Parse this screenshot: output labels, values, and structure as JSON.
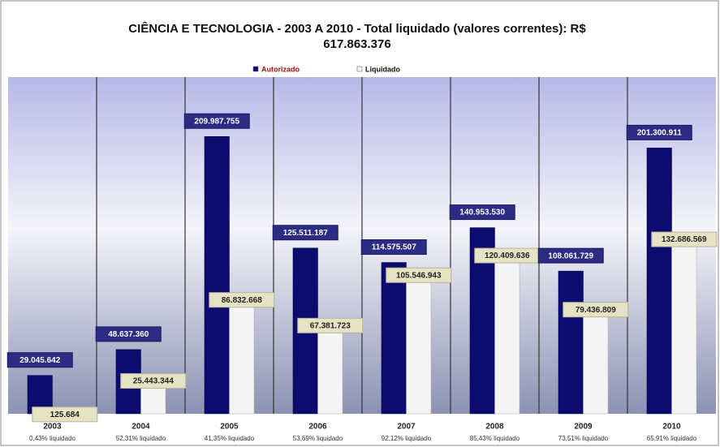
{
  "chart_data": {
    "type": "bar",
    "title": "CIÊNCIA E TECNOLOGIA - 2003 A 2010 - Total liquidado (valores correntes): R$ 617.863.376",
    "categories": [
      "2003",
      "2004",
      "2005",
      "2006",
      "2007",
      "2008",
      "2009",
      "2010"
    ],
    "annotations": [
      "0,43% liquidado",
      "52,31% liquidado",
      "41,35% liquidado",
      "53,69% liquidado",
      "92,12% liquidado",
      "85,43% liquidado",
      "73,51% liquidado",
      "65,91% liquidado"
    ],
    "series": [
      {
        "name": "Autorizado",
        "color": "#0b0b70",
        "values": [
          29045642,
          48637360,
          209987755,
          125511187,
          114575507,
          140953530,
          108061729,
          201300911
        ],
        "value_labels": [
          "29.045.642",
          "48.637.360",
          "209.987.755",
          "125.511.187",
          "114.575.507",
          "140.953.530",
          "108.061.729",
          "201.300.911"
        ]
      },
      {
        "name": "Liquidado",
        "color": "#f4f4f4",
        "values": [
          125684,
          25443344,
          86832668,
          67381723,
          105546943,
          120409636,
          79436809,
          132686569
        ],
        "value_labels": [
          "125.684",
          "25.443.344",
          "86.832.668",
          "67.381.723",
          "105.546.943",
          "120.409.636",
          "79.436.809",
          "132.686.569"
        ]
      }
    ],
    "ylim": [
      0,
      255000000
    ]
  }
}
